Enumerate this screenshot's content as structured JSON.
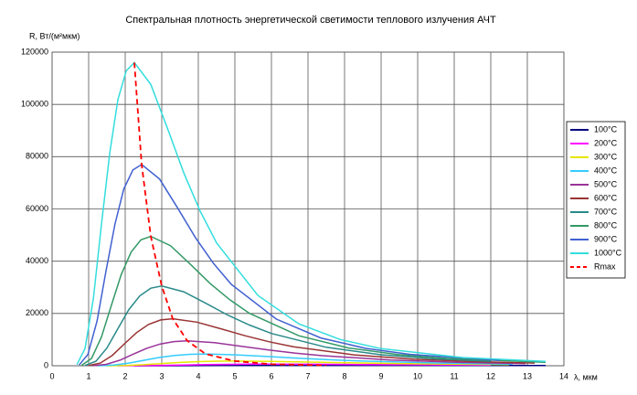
{
  "chart_data": {
    "type": "line",
    "title": "Спектральная плотность энергетической светимости теплового излучения АЧТ",
    "y_label": "R, Вт/(м²мкм)",
    "x_label": "λ, мкм",
    "xlim": [
      0,
      14
    ],
    "xticks": [
      0,
      1,
      2,
      3,
      4,
      5,
      6,
      7,
      8,
      9,
      10,
      11,
      12,
      13,
      14
    ],
    "ylim": [
      0,
      120000
    ],
    "yticks": [
      0,
      20000,
      40000,
      60000,
      80000,
      100000,
      120000
    ],
    "grid": true,
    "legend": "right",
    "series": [
      {
        "name": "100°C",
        "color": "#000080",
        "dash": false,
        "x": [
          2.25,
          3,
          3.75,
          4.5,
          5.25,
          6,
          6.75,
          7.5,
          9,
          10.5,
          12,
          13.5
        ],
        "values": [
          1,
          8,
          33,
          70,
          106,
          132,
          146,
          150,
          139,
          118,
          96,
          77
        ]
      },
      {
        "name": "200°C",
        "color": "#ff00ff",
        "dash": false,
        "x": [
          1.8,
          2.4,
          3,
          3.6,
          4.2,
          4.8,
          5.4,
          6,
          7.2,
          8.4,
          9.6,
          10.8,
          12
        ],
        "values": [
          2,
          34,
          133,
          280,
          422,
          527,
          584,
          600,
          557,
          471,
          382,
          306,
          243
        ]
      },
      {
        "name": "300°C",
        "color": "#e6e600",
        "dash": false,
        "x": [
          1.5,
          2,
          2.5,
          3,
          3.5,
          4,
          4.5,
          5,
          6,
          7,
          8,
          9,
          10,
          12.5
        ],
        "values": [
          7,
          102,
          400,
          839,
          1267,
          1580,
          1751,
          1800,
          1670,
          1413,
          1147,
          918,
          729,
          418
        ]
      },
      {
        "name": "400°C",
        "color": "#33ccff",
        "dash": false,
        "x": [
          1.26,
          1.68,
          2.1,
          2.52,
          2.94,
          3.36,
          3.78,
          4.2,
          5.04,
          5.88,
          6.72,
          7.56,
          8.4,
          10.5,
          12.6
        ],
        "values": [
          17,
          254,
          999,
          2097,
          3168,
          3951,
          4379,
          4500,
          4176,
          3533,
          2867,
          2295,
          1823,
          1044,
          621
        ]
      },
      {
        "name": "500°C",
        "color": "#993399",
        "dash": false,
        "x": [
          1.11,
          1.48,
          1.85,
          2.22,
          2.59,
          2.96,
          3.33,
          3.7,
          4.44,
          5.18,
          5.92,
          6.66,
          7.4,
          9.25,
          11.1,
          12.95
        ],
        "values": [
          36,
          537,
          2109,
          4427,
          6688,
          8341,
          9244,
          9500,
          8816,
          7458,
          6052,
          4845,
          3848,
          2204,
          1311,
          822
        ]
      },
      {
        "name": "600°C",
        "color": "#993333",
        "dash": false,
        "x": [
          0.99,
          1.32,
          1.65,
          1.98,
          2.31,
          2.64,
          2.97,
          3.3,
          3.96,
          4.62,
          5.28,
          5.94,
          6.6,
          8.25,
          9.9,
          11.55,
          13.2
        ],
        "values": [
          68,
          1017,
          3996,
          8388,
          12672,
          15804,
          17514,
          18000,
          16704,
          14130,
          11466,
          9180,
          7290,
          4176,
          2484,
          1557,
          1017
        ]
      },
      {
        "name": "700°C",
        "color": "#2a8a8a",
        "dash": false,
        "x": [
          0.9,
          1.2,
          1.5,
          1.8,
          2.1,
          2.4,
          2.7,
          3,
          3.6,
          4.2,
          4.8,
          5.4,
          6,
          7.5,
          9,
          10.5,
          12
        ],
        "values": [
          116,
          1723,
          6771,
          14213,
          21472,
          26779,
          29677,
          30500,
          28304,
          23943,
          19429,
          15555,
          12353,
          7076,
          4209,
          2638,
          1723
        ]
      },
      {
        "name": "800°C",
        "color": "#339966",
        "dash": false,
        "x": [
          0.81,
          1.08,
          1.35,
          1.62,
          1.89,
          2.16,
          2.43,
          2.7,
          3.24,
          3.78,
          4.32,
          4.86,
          5.4,
          6.75,
          8.1,
          9.45,
          10.8,
          13.5
        ],
        "values": [
          188,
          2797,
          10989,
          23067,
          34848,
          43461,
          48164,
          49500,
          45936,
          38858,
          31532,
          25245,
          20048,
          11484,
          6831,
          4282,
          2797,
          1327
        ]
      },
      {
        "name": "900°C",
        "color": "#4060d0",
        "dash": false,
        "x": [
          0.74,
          0.98,
          1.23,
          1.47,
          1.72,
          1.96,
          2.21,
          2.45,
          2.94,
          3.43,
          3.92,
          4.41,
          4.9,
          6.13,
          7.35,
          8.58,
          9.8,
          12.25
        ],
        "values": [
          293,
          4351,
          17094,
          35882,
          54208,
          67606,
          74921,
          77000,
          71456,
          60445,
          49049,
          39270,
          31185,
          17864,
          10626,
          6661,
          4351,
          2064
        ]
      },
      {
        "name": "1000°C",
        "color": "#33dddd",
        "dash": false,
        "x": [
          0.68,
          0.9,
          1.13,
          1.35,
          1.58,
          1.8,
          2.03,
          2.25,
          2.7,
          3.15,
          3.6,
          4.05,
          4.5,
          5.63,
          6.75,
          7.88,
          9,
          11.25,
          13.5
        ],
        "values": [
          441,
          6554,
          25752,
          54056,
          81664,
          101848,
          112868,
          116000,
          107648,
          91060,
          73892,
          59160,
          46980,
          26912,
          16008,
          10034,
          6554,
          3109,
          1647
        ]
      },
      {
        "name": "Rmax",
        "color": "#ff0000",
        "dash": true,
        "x": [
          2.25,
          2.45,
          2.7,
          3,
          3.3,
          3.7,
          4.2,
          5,
          6,
          7.5
        ],
        "values": [
          116000,
          77000,
          49500,
          30500,
          18000,
          9500,
          4500,
          1800,
          600,
          150
        ]
      }
    ]
  }
}
